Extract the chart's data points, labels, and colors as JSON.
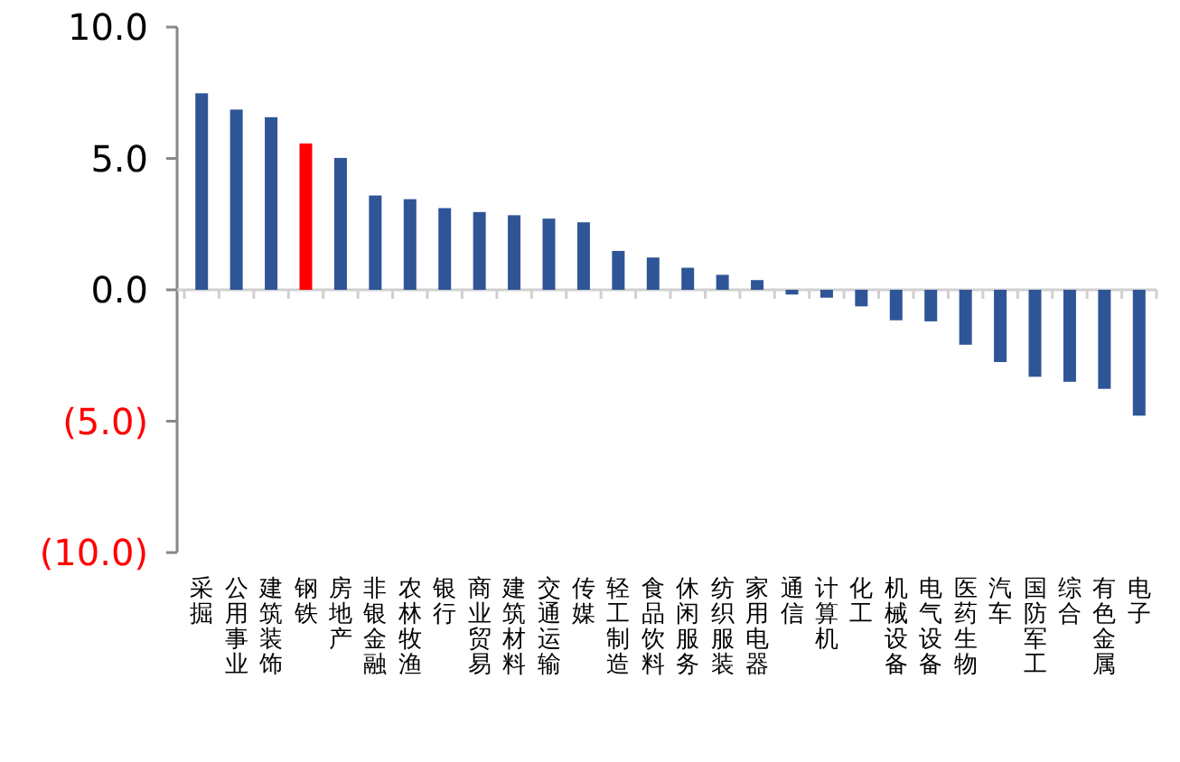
{
  "chart_data": {
    "type": "bar",
    "categories": [
      "采掘",
      "公用事业",
      "建筑装饰",
      "钢铁",
      "房地产",
      "非银金融",
      "农林牧渔",
      "银行",
      "商业贸易",
      "建筑材料",
      "交通运输",
      "传媒",
      "轻工制造",
      "食品饮料",
      "休闲服务",
      "纺织服装",
      "家用电器",
      "通信",
      "计算机",
      "化工",
      "机械设备",
      "电气设备",
      "医药生物",
      "汽车",
      "国防军工",
      "综合",
      "有色金属",
      "电子"
    ],
    "values": [
      7.48,
      6.86,
      6.57,
      5.57,
      5.02,
      3.59,
      3.45,
      3.11,
      2.96,
      2.84,
      2.71,
      2.57,
      1.48,
      1.23,
      0.84,
      0.57,
      0.37,
      -0.18,
      -0.3,
      -0.63,
      -1.16,
      -1.2,
      -2.09,
      -2.75,
      -3.31,
      -3.5,
      -3.77,
      -4.79
    ],
    "colors": [
      "#2f5597",
      "#2f5597",
      "#2f5597",
      "#ff0000",
      "#2f5597",
      "#2f5597",
      "#2f5597",
      "#2f5597",
      "#2f5597",
      "#2f5597",
      "#2f5597",
      "#2f5597",
      "#2f5597",
      "#2f5597",
      "#2f5597",
      "#2f5597",
      "#2f5597",
      "#2f5597",
      "#2f5597",
      "#2f5597",
      "#2f5597",
      "#2f5597",
      "#2f5597",
      "#2f5597",
      "#2f5597",
      "#2f5597",
      "#2f5597",
      "#2f5597"
    ],
    "ylim": [
      -10,
      10
    ],
    "yticks": [
      {
        "value": -10,
        "label": "(10.0)"
      },
      {
        "value": -5,
        "label": "(5.0)"
      },
      {
        "value": 0,
        "label": "0.0"
      },
      {
        "value": 5,
        "label": "5.0"
      },
      {
        "value": 10,
        "label": "10.0"
      }
    ],
    "tick_labels": true
  }
}
